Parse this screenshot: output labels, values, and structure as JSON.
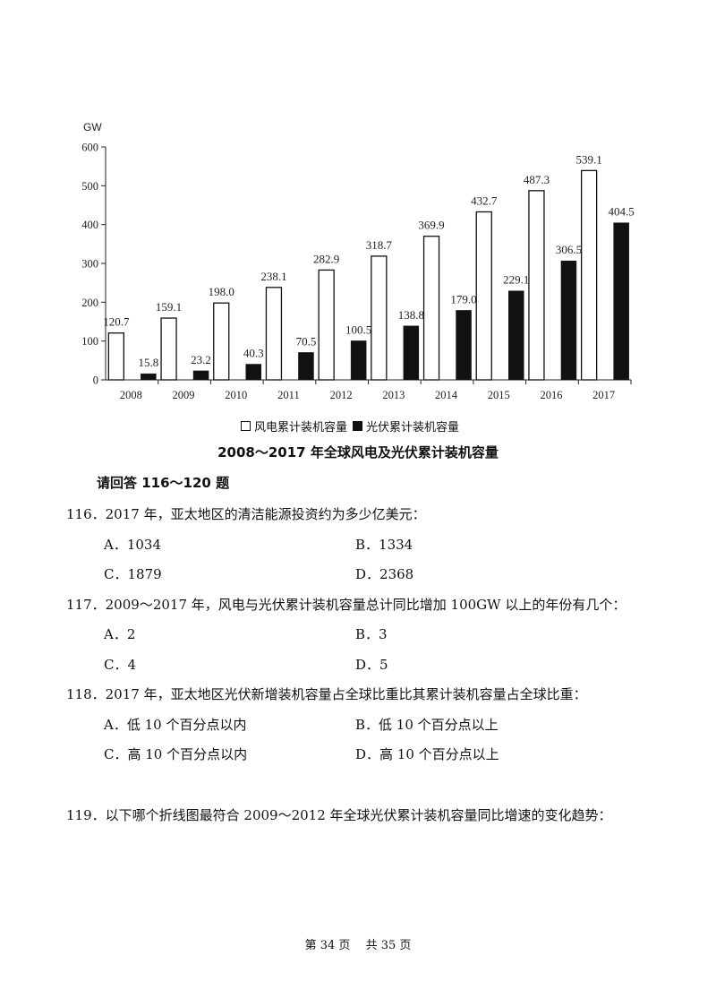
{
  "chart_data": {
    "type": "bar",
    "title": "2008～2017 年全球风电及光伏累计装机容量",
    "unit": "GW",
    "categories": [
      "2008",
      "2009",
      "2010",
      "2011",
      "2012",
      "2013",
      "2014",
      "2015",
      "2016",
      "2017"
    ],
    "series": [
      {
        "name": "风电累计装机容量",
        "style": "hollow",
        "values": [
          120.7,
          159.1,
          198.0,
          238.1,
          282.9,
          318.7,
          369.9,
          432.7,
          487.3,
          539.1
        ],
        "labels": [
          "120.7",
          "159.1",
          "198.0",
          "238.1",
          "282.9",
          "318.7",
          "369.9",
          "432.7",
          "487.3",
          "539.1"
        ]
      },
      {
        "name": "光伏累计装机容量",
        "style": "solid",
        "values": [
          15.8,
          23.2,
          40.3,
          70.5,
          100.5,
          138.8,
          179.0,
          229.1,
          306.5,
          404.5
        ],
        "labels": [
          "15.8",
          "23.2",
          "40.3",
          "70.5",
          "100.5",
          "138.8",
          "179.0",
          "229.1",
          "306.5",
          "404.5"
        ]
      }
    ],
    "yticks": [
      "0",
      "100",
      "200",
      "300",
      "400",
      "500",
      "600"
    ],
    "ylim": [
      0,
      600
    ],
    "legend": "bottom",
    "grid": false
  },
  "instruction": "请回答 116～120 题",
  "questions": [
    {
      "number": "116．",
      "text": "2017 年，亚太地区的清洁能源投资约为多少亿美元：",
      "options": [
        "A．1034",
        "B．1334",
        "C．1879",
        "D．2368"
      ]
    },
    {
      "number": "117．",
      "text": "2009～2017 年，风电与光伏累计装机容量总计同比增加 100GW 以上的年份有几个：",
      "options": [
        "A．2",
        "B．3",
        "C．4",
        "D．5"
      ]
    },
    {
      "number": "118．",
      "text": "2017 年，亚太地区光伏新增装机容量占全球比重比其累计装机容量占全球比重：",
      "options": [
        "A．低 10 个百分点以内",
        "B．低 10 个百分点以上",
        "C．高 10 个百分点以内",
        "D．高 10 个百分点以上"
      ]
    },
    {
      "number": "119．",
      "text": "以下哪个折线图最符合 2009～2012 年全球光伏累计装机容量同比增速的变化趋势："
    }
  ],
  "footer": "第 34 页　 共 35 页"
}
